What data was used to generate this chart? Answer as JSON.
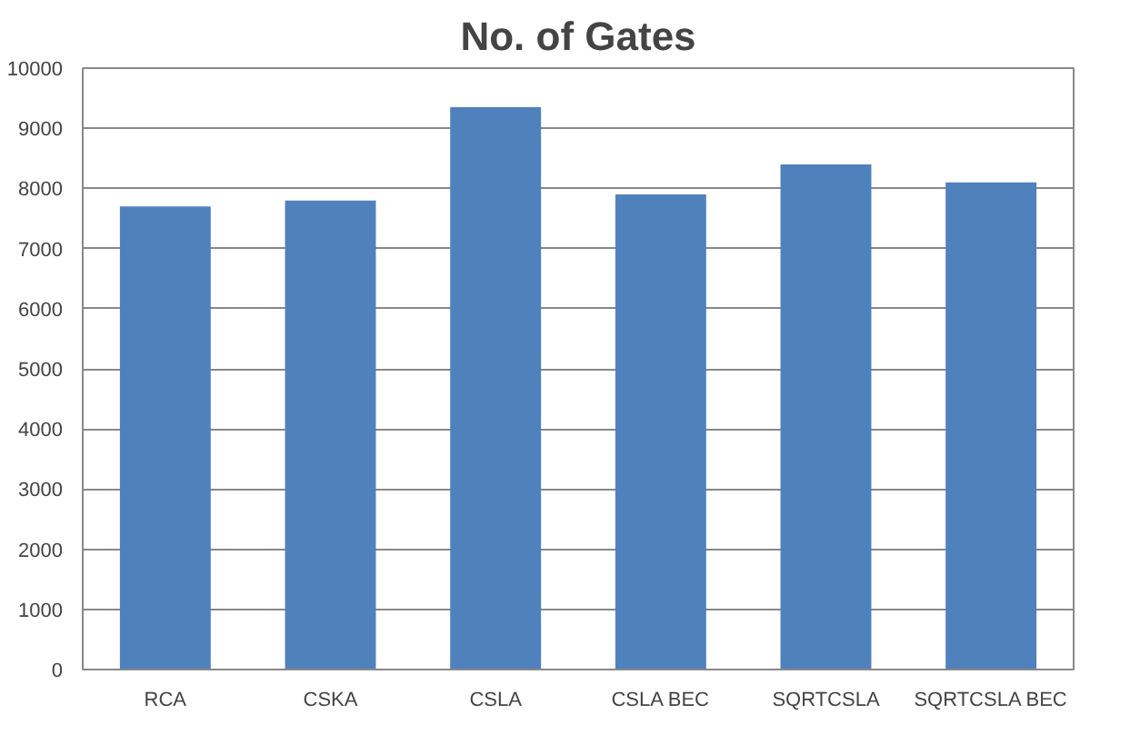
{
  "chart_data": {
    "type": "bar",
    "title": "No. of Gates",
    "categories": [
      "RCA",
      "CSKA",
      "CSLA",
      "CSLA BEC",
      "SQRTCSLA",
      "SQRTCSLA BEC"
    ],
    "values": [
      7700,
      7800,
      9350,
      7900,
      8400,
      8100
    ],
    "color": "#4f81bd",
    "ylim": [
      0,
      10000
    ],
    "yticks": [
      0,
      1000,
      2000,
      3000,
      4000,
      5000,
      6000,
      7000,
      8000,
      9000,
      10000
    ],
    "grid": "y"
  }
}
